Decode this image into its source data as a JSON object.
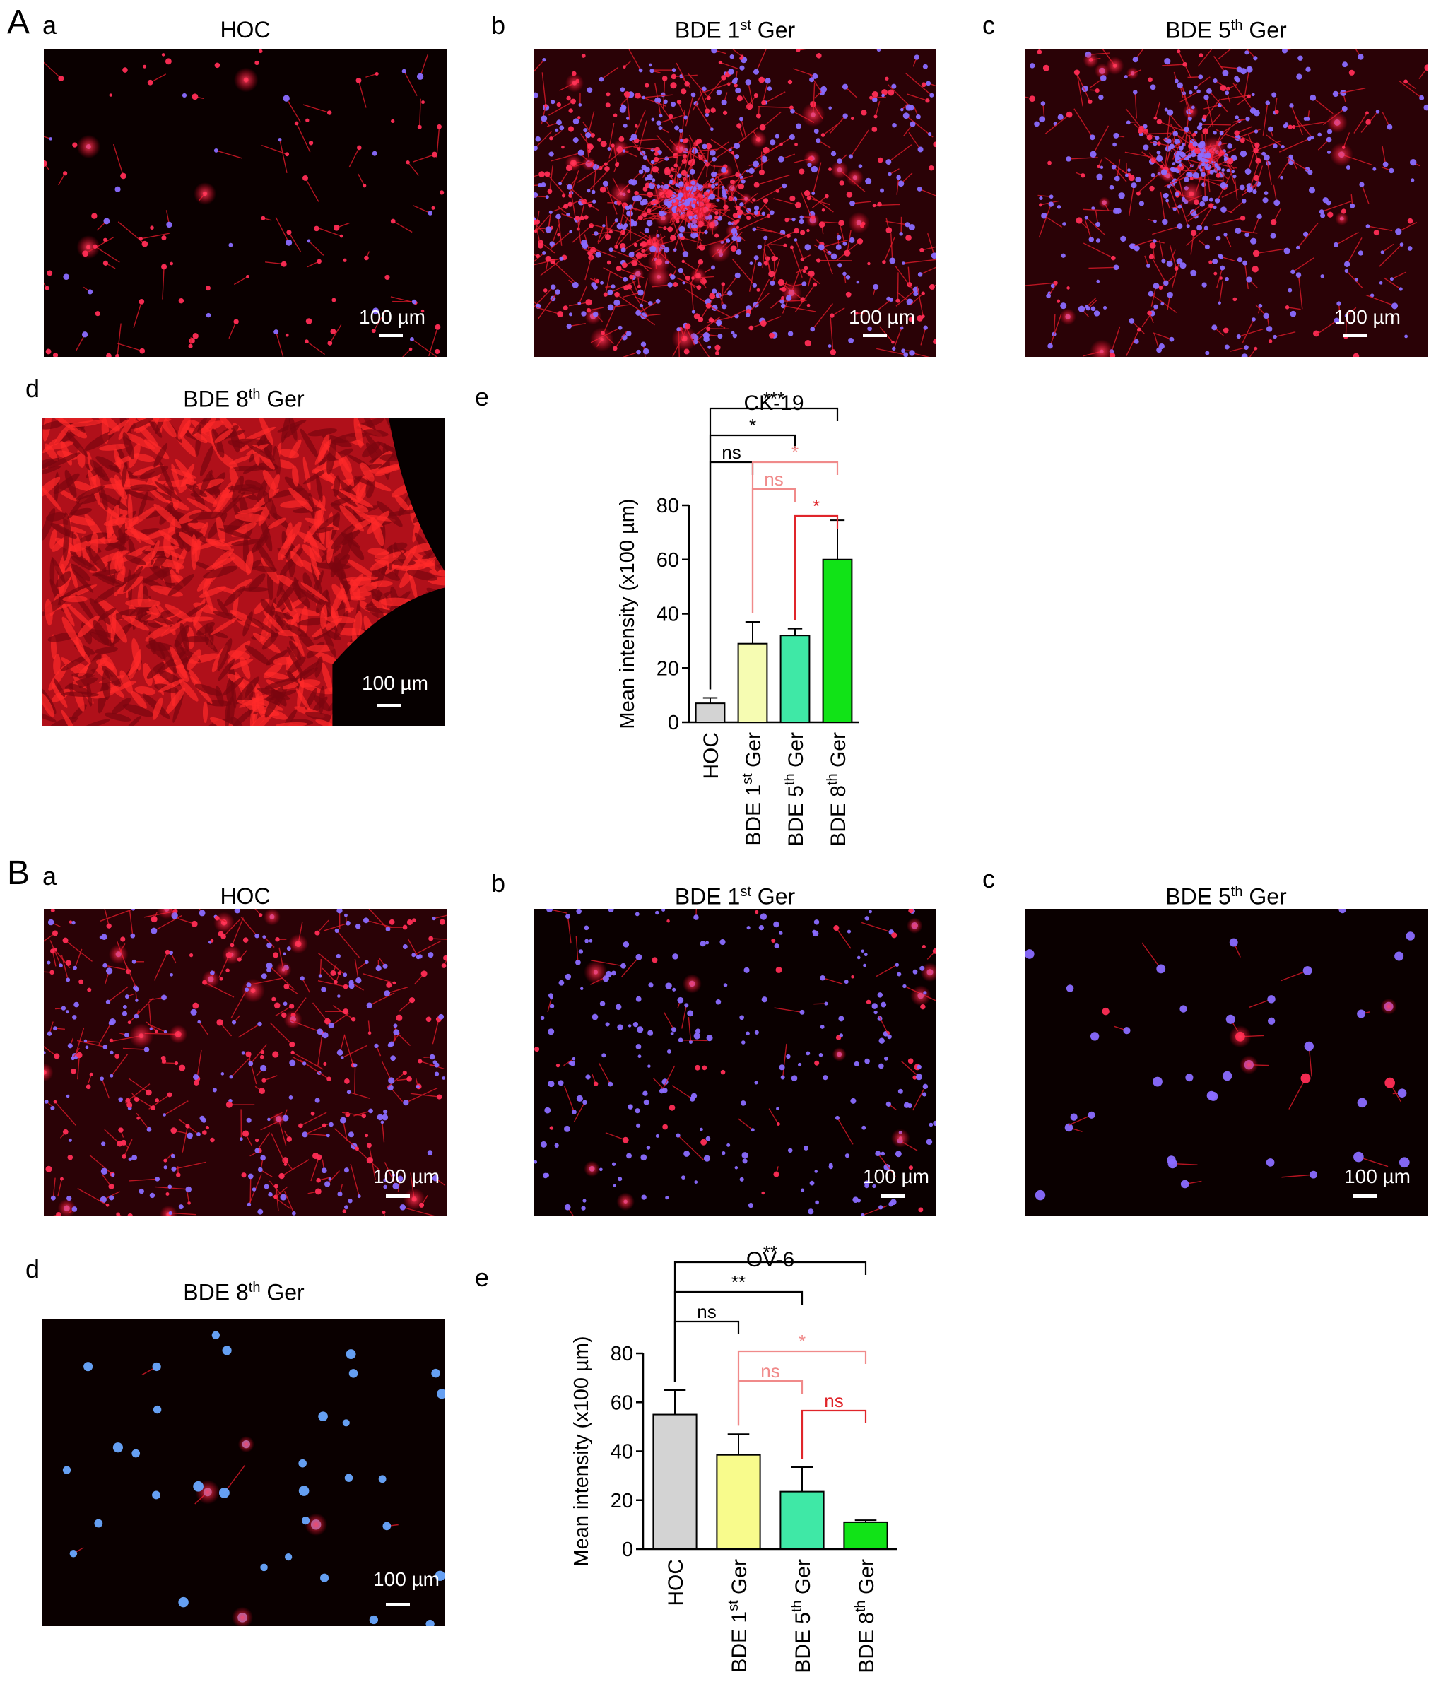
{
  "figure": {
    "sections": [
      {
        "label": "A",
        "panels": [
          {
            "letter": "a",
            "title": "HOC",
            "scale_label": "100 µm",
            "stain": "red-sparse"
          },
          {
            "letter": "b",
            "title_base": "BDE 1",
            "title_sup": "st",
            "title_tail": " Ger",
            "scale_label": "100 µm",
            "stain": "red-colony"
          },
          {
            "letter": "c",
            "title_base": "BDE 5",
            "title_sup": "th",
            "title_tail": " Ger",
            "scale_label": "100 µm",
            "stain": "red-network"
          },
          {
            "letter": "d",
            "title_base": "BDE 8",
            "title_sup": "th",
            "title_tail": " Ger",
            "scale_label": "100 µm",
            "stain": "red-dense"
          },
          {
            "letter": "e"
          }
        ]
      },
      {
        "label": "B",
        "panels": [
          {
            "letter": "a",
            "title": "HOC",
            "scale_label": "100 µm",
            "stain": "red-blue-mixed"
          },
          {
            "letter": "b",
            "title_base": "BDE 1",
            "title_sup": "st",
            "title_tail": " Ger",
            "scale_label": "100 µm",
            "stain": "blue-nuclei"
          },
          {
            "letter": "c",
            "title_base": "BDE 5",
            "title_sup": "th",
            "title_tail": " Ger",
            "scale_label": "100 µm",
            "stain": "sparse-cells"
          },
          {
            "letter": "d",
            "title_base": "BDE 8",
            "title_sup": "th",
            "title_tail": " Ger",
            "scale_label": "100 µm",
            "stain": "blue-sparse"
          },
          {
            "letter": "e"
          }
        ]
      }
    ]
  },
  "chart_data": [
    {
      "type": "bar",
      "title": "CK-19",
      "ylabel": "Mean intensity (x100 µm)",
      "xlabel": "",
      "ylim": [
        0,
        80
      ],
      "yticks": [
        0,
        20,
        40,
        60,
        80
      ],
      "categories": [
        "HOC",
        "BDE 1st Ger",
        "BDE 5th Ger",
        "BDE 8th Ger"
      ],
      "category_parts": [
        [
          "HOC",
          "",
          ""
        ],
        [
          "BDE 1",
          "st",
          " Ger"
        ],
        [
          "BDE 5",
          "th",
          " Ger"
        ],
        [
          "BDE 8",
          "th",
          " Ger"
        ]
      ],
      "values": [
        7,
        29,
        32,
        60
      ],
      "errors": [
        2,
        8,
        2.5,
        14.5
      ],
      "bar_colors": [
        "#d3d3d3",
        "#f6fcb2",
        "#3fe8a6",
        "#11e317"
      ],
      "significance": [
        {
          "from": 0,
          "to": 3,
          "label": "***",
          "color": "#000000",
          "level": 3
        },
        {
          "from": 0,
          "to": 2,
          "label": "*",
          "color": "#000000",
          "level": 2
        },
        {
          "from": 0,
          "to": 1,
          "label": "ns",
          "color": "#000000",
          "level": 1
        },
        {
          "from": 1,
          "to": 3,
          "label": "*",
          "color": "#f08a8a",
          "level": 1
        },
        {
          "from": 1,
          "to": 2,
          "label": "ns",
          "color": "#f08a8a",
          "level": 0
        },
        {
          "from": 2,
          "to": 3,
          "label": "*",
          "color": "#e0252a",
          "level": -1
        }
      ]
    },
    {
      "type": "bar",
      "title": "OV-6",
      "ylabel": "Mean intensity (x100 µm)",
      "xlabel": "",
      "ylim": [
        0,
        80
      ],
      "yticks": [
        0,
        20,
        40,
        60,
        80
      ],
      "categories": [
        "HOC",
        "BDE 1st Ger",
        "BDE 5th Ger",
        "BDE 8th Ger"
      ],
      "category_parts": [
        [
          "HOC",
          "",
          ""
        ],
        [
          "BDE 1",
          "st",
          " Ger"
        ],
        [
          "BDE 5",
          "th",
          " Ger"
        ],
        [
          "BDE 8",
          "th",
          " Ger"
        ]
      ],
      "values": [
        55,
        38.5,
        23.5,
        11
      ],
      "errors": [
        10,
        8.5,
        10,
        0.8
      ],
      "bar_colors": [
        "#d3d3d3",
        "#f8fb8c",
        "#3fe8a6",
        "#11e317"
      ],
      "significance": [
        {
          "from": 0,
          "to": 3,
          "label": "**",
          "color": "#000000",
          "level": 3
        },
        {
          "from": 0,
          "to": 2,
          "label": "**",
          "color": "#000000",
          "level": 2
        },
        {
          "from": 0,
          "to": 1,
          "label": "ns",
          "color": "#000000",
          "level": 1
        },
        {
          "from": 1,
          "to": 3,
          "label": "*",
          "color": "#f08a8a",
          "level": 0
        },
        {
          "from": 1,
          "to": 2,
          "label": "ns",
          "color": "#f08a8a",
          "level": -1
        },
        {
          "from": 2,
          "to": 3,
          "label": "ns",
          "color": "#e0252a",
          "level": -2
        }
      ]
    }
  ]
}
